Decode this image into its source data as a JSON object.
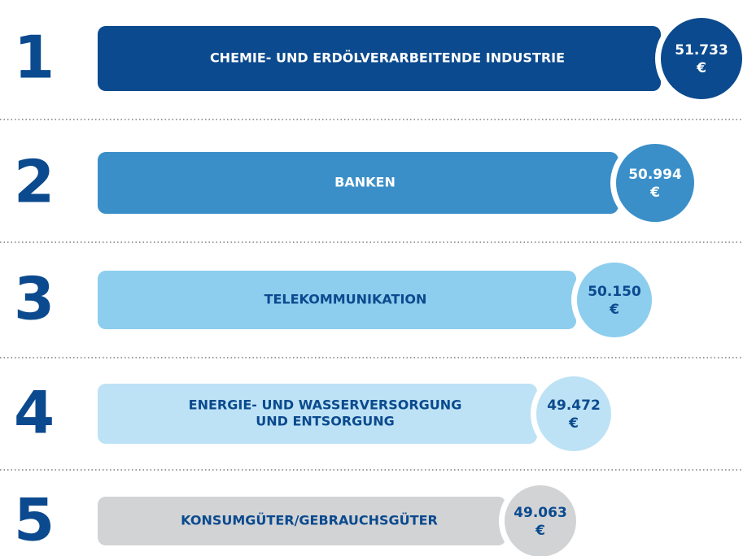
{
  "ranking": {
    "items": [
      {
        "rank": 1,
        "label": [
          "CHEMIE- UND ERDÖLVERARBEITENDE INDUSTRIE"
        ],
        "value": "51.733",
        "unit": "€",
        "color": "#0b4a8e",
        "text_color": "#ffffff"
      },
      {
        "rank": 2,
        "label": [
          "BANKEN"
        ],
        "value": "50.994",
        "unit": "€",
        "color": "#3b8fc9",
        "text_color": "#ffffff"
      },
      {
        "rank": 3,
        "label": [
          "TELEKOMMUNIKATION"
        ],
        "value": "50.150",
        "unit": "€",
        "color": "#8dcdee",
        "text_color": "#0b4a8e"
      },
      {
        "rank": 4,
        "label": [
          "ENERGIE- UND WASSERVERSORGUNG",
          "UND ENTSORGUNG"
        ],
        "value": "49.472",
        "unit": "€",
        "color": "#bde2f5",
        "text_color": "#0b4a8e"
      },
      {
        "rank": 5,
        "label": [
          "KONSUMGÜTER/GEBRAUCHSGÜTER"
        ],
        "value": "49.063",
        "unit": "€",
        "color": "#d2d3d5",
        "text_color": "#0b4a8e"
      }
    ]
  }
}
